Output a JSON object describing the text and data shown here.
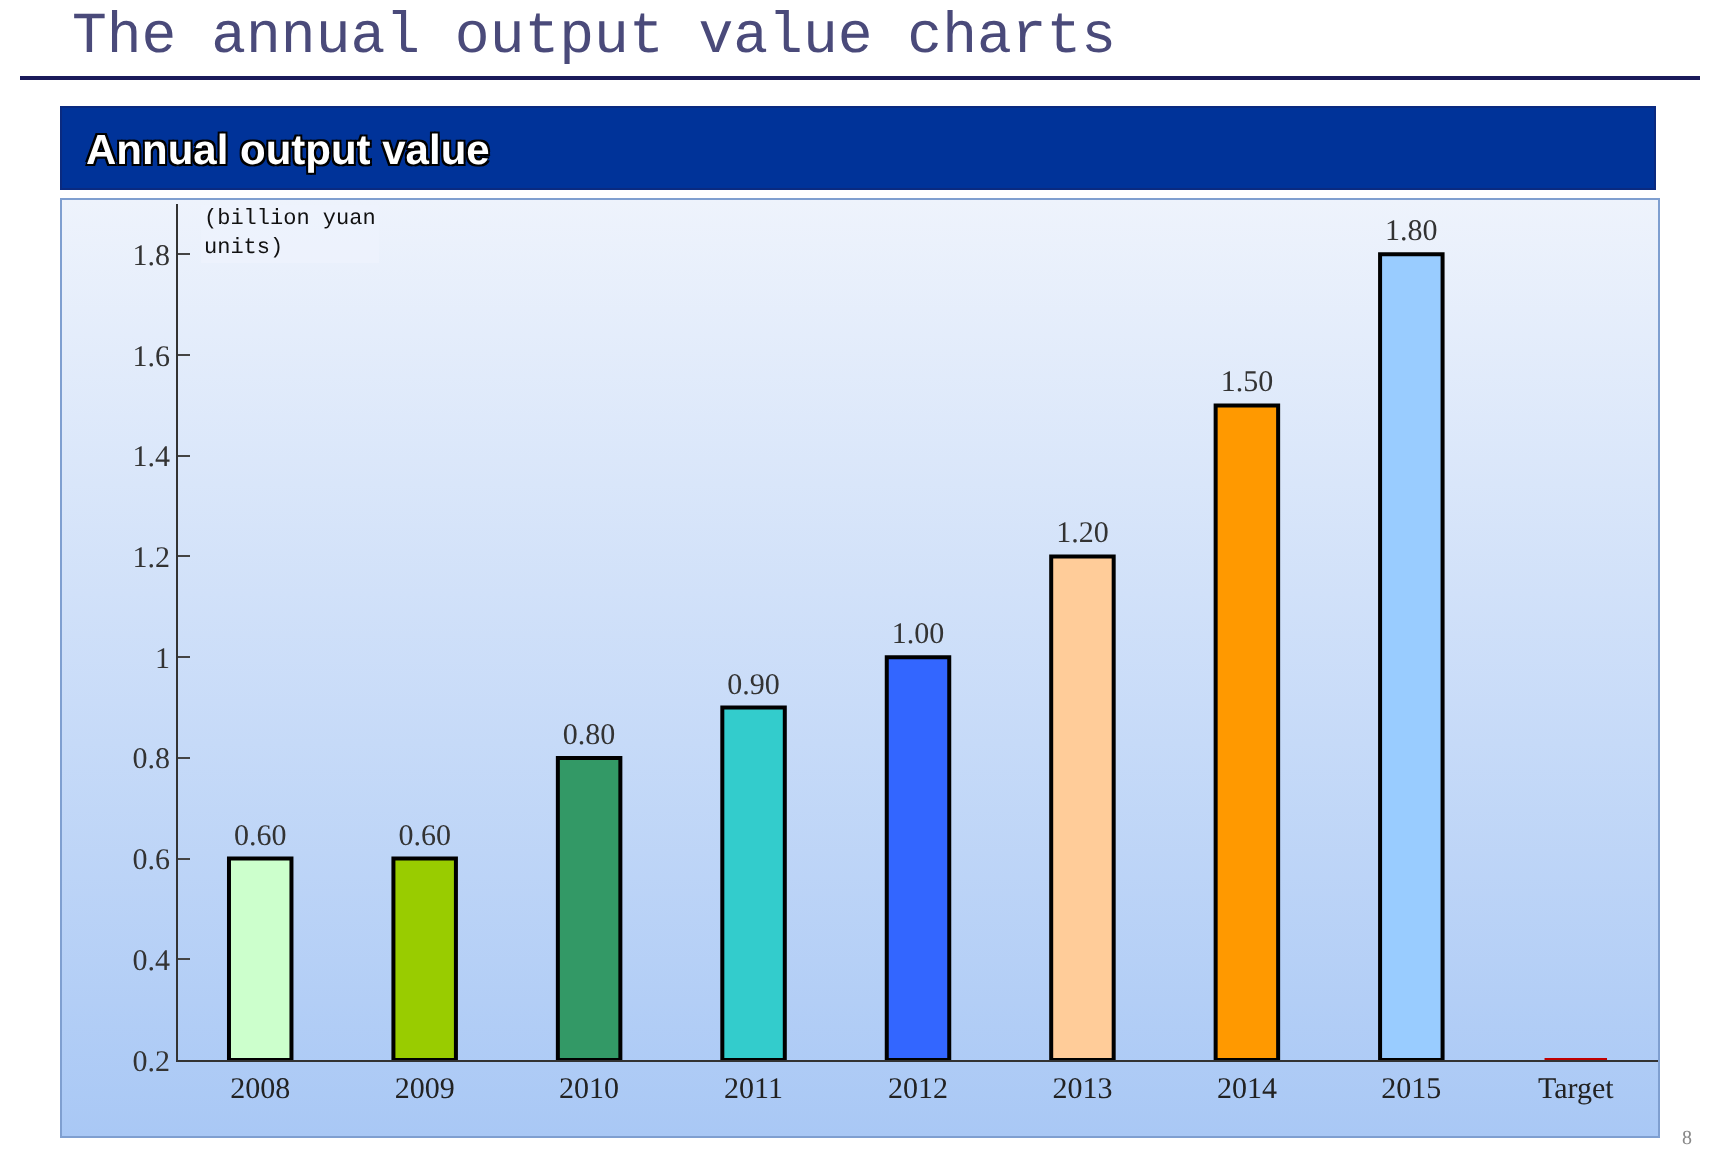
{
  "chart_data": {
    "type": "bar",
    "title": "The annual output value charts",
    "subtitle": "Annual output value",
    "ylabel": "(billion yuan units)",
    "categories": [
      "2008",
      "2009",
      "2010",
      "2011",
      "2012",
      "2013",
      "2014",
      "2015",
      "Target"
    ],
    "values": [
      0.6,
      0.6,
      0.8,
      0.9,
      1.0,
      1.2,
      1.5,
      1.8,
      0.2
    ],
    "colors": [
      "#ccffcc",
      "#99cc00",
      "#339966",
      "#33cccc",
      "#3366ff",
      "#ffcc99",
      "#ff9900",
      "#99ccff",
      "#c00000"
    ],
    "value_labels": [
      "0.60",
      "0.60",
      "0.80",
      "0.90",
      "1.00",
      "1.20",
      "1.50",
      "1.80",
      null
    ],
    "ylim": [
      0.2,
      1.9
    ],
    "yticks": [
      0.2,
      0.4,
      0.6,
      0.8,
      1,
      1.2,
      1.4,
      1.6,
      1.8
    ],
    "grid": false,
    "legend": false,
    "annotations": [
      "8"
    ]
  }
}
